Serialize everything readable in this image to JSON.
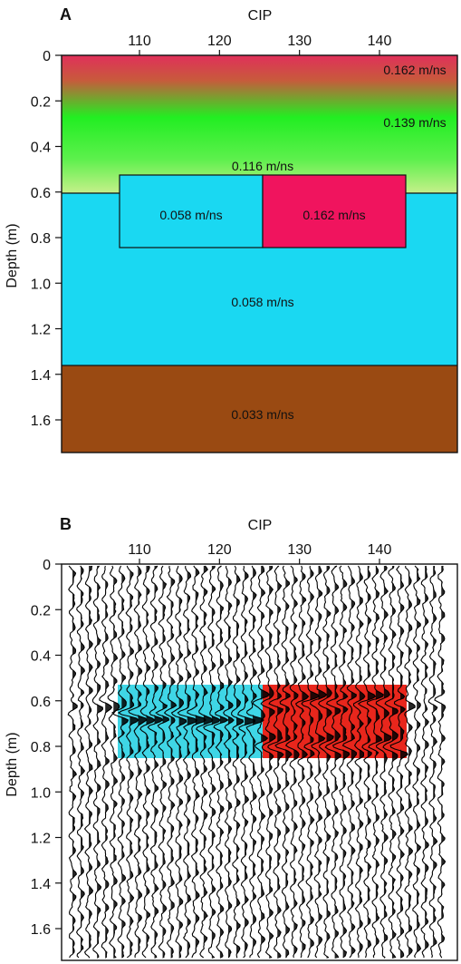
{
  "panel_a": {
    "letter": "A",
    "x_axis_label": "CIP",
    "y_axis_label": "Depth (m)",
    "x_ticks": [
      "110",
      "120",
      "130",
      "140"
    ],
    "x_tick_values": [
      110,
      120,
      130,
      140
    ],
    "y_ticks": [
      "0",
      "0.2",
      "0.4",
      "0.6",
      "0.8",
      "1.0",
      "1.2",
      "1.4",
      "1.6"
    ],
    "y_tick_values": [
      0,
      0.2,
      0.4,
      0.6,
      0.8,
      1.0,
      1.2,
      1.4,
      1.6
    ],
    "labels": {
      "top": "0.162 m/ns",
      "upper": "0.139 m/ns",
      "mid": "0.116 m/ns",
      "box_left": "0.058 m/ns",
      "box_right": "0.162 m/ns",
      "lower": "0.058 m/ns",
      "bottom": "0.033 m/ns"
    },
    "colors": {
      "top": "#e0305a",
      "upper": "#22ee22",
      "mid": "#c6f08a",
      "box_left": "#1ad8f2",
      "box_right": "#f0145e",
      "lower": "#1ad8f2",
      "bottom": "#9a4a12"
    }
  },
  "panel_b": {
    "letter": "B",
    "x_axis_label": "CIP",
    "y_axis_label": "Depth (m)",
    "x_ticks": [
      "110",
      "120",
      "130",
      "140"
    ],
    "y_ticks": [
      "0",
      "0.2",
      "0.4",
      "0.6",
      "0.8",
      "1.0",
      "1.2",
      "1.4",
      "1.6"
    ],
    "colors": {
      "box_left": "#3fd6e6",
      "box_right": "#e8261c",
      "trace": "#000000"
    }
  }
}
